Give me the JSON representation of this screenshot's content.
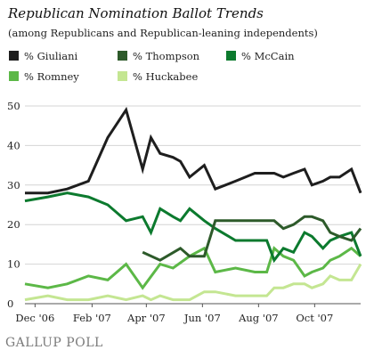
{
  "chart_data": {
    "type": "line",
    "title": "Republican Nomination Ballot Trends",
    "subtitle": "(among Republicans and Republican-leaning independents)",
    "ylim": [
      0,
      50
    ],
    "y_ticks": [
      0,
      10,
      20,
      30,
      40,
      50
    ],
    "x_range": [
      "2006-11-20",
      "2007-11-20"
    ],
    "x_ticks": [
      {
        "date": "2006-12-01",
        "label": "Dec '06"
      },
      {
        "date": "2007-02-01",
        "label": "Feb '07"
      },
      {
        "date": "2007-04-01",
        "label": "Apr '07"
      },
      {
        "date": "2007-06-01",
        "label": "Jun '07"
      },
      {
        "date": "2007-08-01",
        "label": "Aug '07"
      },
      {
        "date": "2007-10-01",
        "label": "Oct '07"
      }
    ],
    "grid": "horizontal",
    "legend_position": "top",
    "series": [
      {
        "name": "% Giuliani",
        "color": "#1e1e1e",
        "points": [
          [
            "2006-11-20",
            28
          ],
          [
            "2006-12-15",
            28
          ],
          [
            "2007-01-05",
            29
          ],
          [
            "2007-01-28",
            31
          ],
          [
            "2007-02-18",
            42
          ],
          [
            "2007-03-10",
            49
          ],
          [
            "2007-03-28",
            34
          ],
          [
            "2007-04-06",
            42
          ],
          [
            "2007-04-16",
            38
          ],
          [
            "2007-04-30",
            37
          ],
          [
            "2007-05-08",
            36
          ],
          [
            "2007-05-18",
            32
          ],
          [
            "2007-06-03",
            35
          ],
          [
            "2007-06-15",
            29
          ],
          [
            "2007-07-07",
            31
          ],
          [
            "2007-07-28",
            33
          ],
          [
            "2007-08-10",
            33
          ],
          [
            "2007-08-18",
            33
          ],
          [
            "2007-08-28",
            32
          ],
          [
            "2007-09-08",
            33
          ],
          [
            "2007-09-20",
            34
          ],
          [
            "2007-09-28",
            30
          ],
          [
            "2007-10-10",
            31
          ],
          [
            "2007-10-18",
            32
          ],
          [
            "2007-10-28",
            32
          ],
          [
            "2007-11-10",
            34
          ],
          [
            "2007-11-20",
            28
          ]
        ]
      },
      {
        "name": "% Thompson",
        "color": "#2d5a2a",
        "points": [
          [
            "2007-03-28",
            13
          ],
          [
            "2007-04-16",
            11
          ],
          [
            "2007-05-08",
            14
          ],
          [
            "2007-05-18",
            12
          ],
          [
            "2007-06-03",
            12
          ],
          [
            "2007-06-15",
            21
          ],
          [
            "2007-07-07",
            21
          ],
          [
            "2007-07-28",
            21
          ],
          [
            "2007-08-10",
            21
          ],
          [
            "2007-08-18",
            21
          ],
          [
            "2007-08-28",
            19
          ],
          [
            "2007-09-08",
            20
          ],
          [
            "2007-09-20",
            22
          ],
          [
            "2007-09-28",
            22
          ],
          [
            "2007-10-10",
            21
          ],
          [
            "2007-10-18",
            18
          ],
          [
            "2007-10-28",
            17
          ],
          [
            "2007-11-10",
            16
          ],
          [
            "2007-11-20",
            19
          ]
        ]
      },
      {
        "name": "% McCain",
        "color": "#0c7a2e",
        "points": [
          [
            "2006-11-20",
            26
          ],
          [
            "2006-12-15",
            27
          ],
          [
            "2007-01-05",
            28
          ],
          [
            "2007-01-28",
            27
          ],
          [
            "2007-02-18",
            25
          ],
          [
            "2007-03-10",
            21
          ],
          [
            "2007-03-28",
            22
          ],
          [
            "2007-04-06",
            18
          ],
          [
            "2007-04-16",
            24
          ],
          [
            "2007-04-30",
            22
          ],
          [
            "2007-05-08",
            21
          ],
          [
            "2007-05-18",
            24
          ],
          [
            "2007-06-03",
            21
          ],
          [
            "2007-06-15",
            19
          ],
          [
            "2007-07-07",
            16
          ],
          [
            "2007-07-28",
            16
          ],
          [
            "2007-08-10",
            16
          ],
          [
            "2007-08-18",
            11
          ],
          [
            "2007-08-28",
            14
          ],
          [
            "2007-09-08",
            13
          ],
          [
            "2007-09-20",
            18
          ],
          [
            "2007-09-28",
            17
          ],
          [
            "2007-10-10",
            14
          ],
          [
            "2007-10-18",
            16
          ],
          [
            "2007-10-28",
            17
          ],
          [
            "2007-11-10",
            18
          ],
          [
            "2007-11-20",
            12
          ]
        ]
      },
      {
        "name": "% Romney",
        "color": "#5cb847",
        "points": [
          [
            "2006-11-20",
            5
          ],
          [
            "2006-12-15",
            4
          ],
          [
            "2007-01-05",
            5
          ],
          [
            "2007-01-28",
            7
          ],
          [
            "2007-02-18",
            6
          ],
          [
            "2007-03-10",
            10
          ],
          [
            "2007-03-28",
            4
          ],
          [
            "2007-04-16",
            10
          ],
          [
            "2007-04-30",
            9
          ],
          [
            "2007-05-18",
            12
          ],
          [
            "2007-06-03",
            14
          ],
          [
            "2007-06-15",
            8
          ],
          [
            "2007-07-07",
            9
          ],
          [
            "2007-07-28",
            8
          ],
          [
            "2007-08-10",
            8
          ],
          [
            "2007-08-18",
            14
          ],
          [
            "2007-08-28",
            12
          ],
          [
            "2007-09-08",
            11
          ],
          [
            "2007-09-20",
            7
          ],
          [
            "2007-09-28",
            8
          ],
          [
            "2007-10-10",
            9
          ],
          [
            "2007-10-18",
            11
          ],
          [
            "2007-10-28",
            12
          ],
          [
            "2007-11-10",
            14
          ],
          [
            "2007-11-20",
            12
          ]
        ]
      },
      {
        "name": "% Huckabee",
        "color": "#c4e692",
        "points": [
          [
            "2006-11-20",
            1
          ],
          [
            "2006-12-15",
            2
          ],
          [
            "2007-01-05",
            1
          ],
          [
            "2007-01-28",
            1
          ],
          [
            "2007-02-18",
            2
          ],
          [
            "2007-03-10",
            1
          ],
          [
            "2007-03-28",
            2
          ],
          [
            "2007-04-06",
            1
          ],
          [
            "2007-04-16",
            2
          ],
          [
            "2007-04-30",
            1
          ],
          [
            "2007-05-18",
            1
          ],
          [
            "2007-06-03",
            3
          ],
          [
            "2007-06-15",
            3
          ],
          [
            "2007-07-07",
            2
          ],
          [
            "2007-07-28",
            2
          ],
          [
            "2007-08-10",
            2
          ],
          [
            "2007-08-18",
            4
          ],
          [
            "2007-08-28",
            4
          ],
          [
            "2007-09-08",
            5
          ],
          [
            "2007-09-20",
            5
          ],
          [
            "2007-09-28",
            4
          ],
          [
            "2007-10-10",
            5
          ],
          [
            "2007-10-18",
            7
          ],
          [
            "2007-10-28",
            6
          ],
          [
            "2007-11-10",
            6
          ],
          [
            "2007-11-20",
            10
          ]
        ]
      }
    ]
  },
  "footer": {
    "logo_text": "GALLUP POLL"
  }
}
